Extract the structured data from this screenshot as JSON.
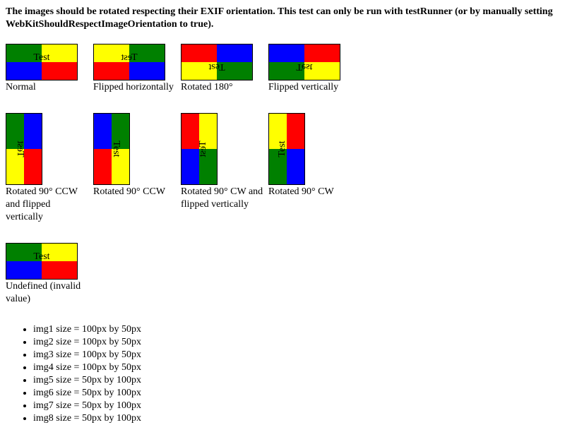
{
  "heading": "The images should be rotated respecting their EXIF orientation. This test can only be run with testRunner (or by manually setting WebKitShouldRespectImageOrientation to true).",
  "image_text": "Test",
  "colors": {
    "green": "#008000",
    "yellow": "#ffff00",
    "blue": "#0000ff",
    "red": "#ff0000"
  },
  "images": [
    {
      "caption": "Normal",
      "quadrants": [
        "green",
        "yellow",
        "blue",
        "red"
      ]
    },
    {
      "caption": "Flipped horizontally",
      "quadrants": [
        "yellow",
        "green",
        "red",
        "blue"
      ]
    },
    {
      "caption": "Rotated 180°",
      "quadrants": [
        "red",
        "blue",
        "yellow",
        "green"
      ]
    },
    {
      "caption": "Flipped vertically",
      "quadrants": [
        "blue",
        "red",
        "green",
        "yellow"
      ]
    },
    {
      "caption": "Rotated 90° CCW and flipped vertically",
      "quadrants": [
        "green",
        "blue",
        "yellow",
        "red"
      ]
    },
    {
      "caption": "Rotated 90° CCW",
      "quadrants": [
        "blue",
        "green",
        "red",
        "yellow"
      ]
    },
    {
      "caption": "Rotated 90° CW and flipped vertically",
      "quadrants": [
        "red",
        "yellow",
        "blue",
        "green"
      ]
    },
    {
      "caption": "Rotated 90° CW",
      "quadrants": [
        "yellow",
        "red",
        "green",
        "blue"
      ]
    },
    {
      "caption": "Undefined (invalid value)",
      "quadrants": [
        "green",
        "yellow",
        "blue",
        "red"
      ]
    }
  ],
  "size_list": [
    "img1 size = 100px by 50px",
    "img2 size = 100px by 50px",
    "img3 size = 100px by 50px",
    "img4 size = 100px by 50px",
    "img5 size = 50px by 100px",
    "img6 size = 50px by 100px",
    "img7 size = 50px by 100px",
    "img8 size = 50px by 100px"
  ]
}
